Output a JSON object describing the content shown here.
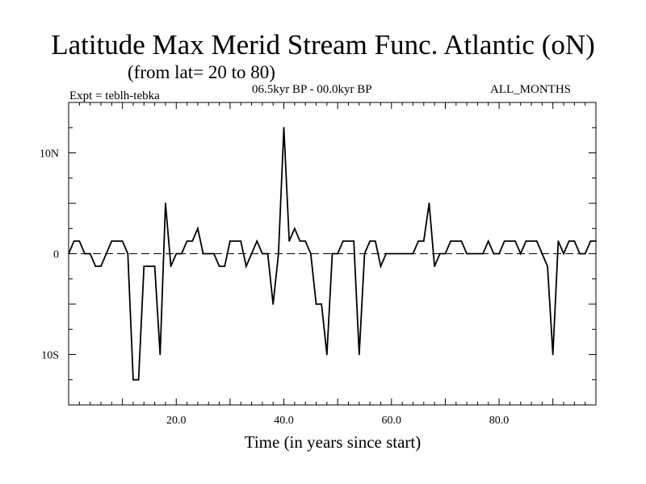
{
  "header": {
    "title": "Latitude Max Merid Stream Func. Atlantic (oN)",
    "subtitle": "(from lat= 20 to 80)",
    "experiment": "Expt = teblh-tebka",
    "period": "06.5kyr BP - 00.0kyr BP",
    "months": "ALL_MONTHS"
  },
  "chart_data": {
    "type": "line",
    "title": "Latitude Max Merid Stream Func. Atlantic (oN)",
    "subtitle": "(from lat= 20 to 80)",
    "xlabel": "Time (in years since start)",
    "ylabel": "",
    "xlim": [
      0,
      98
    ],
    "ylim": [
      -15,
      15
    ],
    "x_ticks": [
      {
        "value": 20,
        "label": "20.0"
      },
      {
        "value": 40,
        "label": "40.0"
      },
      {
        "value": 60,
        "label": "60.0"
      },
      {
        "value": 80,
        "label": "80.0"
      }
    ],
    "y_ticks": [
      {
        "value": 10,
        "label": "10N"
      },
      {
        "value": 0,
        "label": "0"
      },
      {
        "value": -10,
        "label": "10S"
      }
    ],
    "reference_line": {
      "y": 0,
      "style": "dashed"
    },
    "series": [
      {
        "name": "teblh-tebka",
        "x": [
          0,
          1,
          2,
          3,
          4,
          5,
          6,
          7,
          8,
          9,
          10,
          11,
          12,
          13,
          14,
          15,
          16,
          17,
          18,
          19,
          20,
          21,
          22,
          23,
          24,
          25,
          26,
          27,
          28,
          29,
          30,
          31,
          32,
          33,
          34,
          35,
          36,
          37,
          38,
          39,
          40,
          41,
          42,
          43,
          44,
          45,
          46,
          47,
          48,
          49,
          50,
          51,
          52,
          53,
          54,
          55,
          56,
          57,
          58,
          59,
          60,
          61,
          62,
          63,
          64,
          65,
          66,
          67,
          68,
          69,
          70,
          71,
          72,
          73,
          74,
          75,
          76,
          77,
          78,
          79,
          80,
          81,
          82,
          83,
          84,
          85,
          86,
          87,
          88,
          89,
          90,
          91,
          92,
          93,
          94,
          95,
          96,
          97,
          98
        ],
        "values": [
          0,
          1.25,
          1.25,
          0,
          0,
          -1.25,
          -1.25,
          0,
          1.25,
          1.25,
          1.25,
          0,
          -12.5,
          -12.5,
          -1.25,
          -1.25,
          -1.25,
          -10,
          5,
          -1.25,
          0,
          0,
          1.25,
          1.25,
          2.5,
          0,
          0,
          0,
          -1.25,
          -1.25,
          1.25,
          1.25,
          1.25,
          -1.25,
          0,
          1.25,
          0,
          0,
          -5,
          0,
          12.5,
          1.25,
          2.5,
          1.25,
          1.25,
          0,
          -5,
          -5,
          -10,
          0,
          0,
          1.25,
          1.25,
          1.25,
          -10,
          0,
          1.25,
          1.25,
          -1.25,
          0,
          0,
          0,
          0,
          0,
          0,
          1.25,
          1.25,
          5,
          -1.25,
          0,
          0,
          1.25,
          1.25,
          1.25,
          0,
          0,
          0,
          0,
          1.25,
          0,
          0,
          1.25,
          1.25,
          1.25,
          0,
          1.25,
          1.25,
          1.25,
          0,
          -1.25,
          -10,
          1.25,
          0,
          1.25,
          1.25,
          0,
          0,
          1.25,
          1.25
        ]
      }
    ]
  }
}
